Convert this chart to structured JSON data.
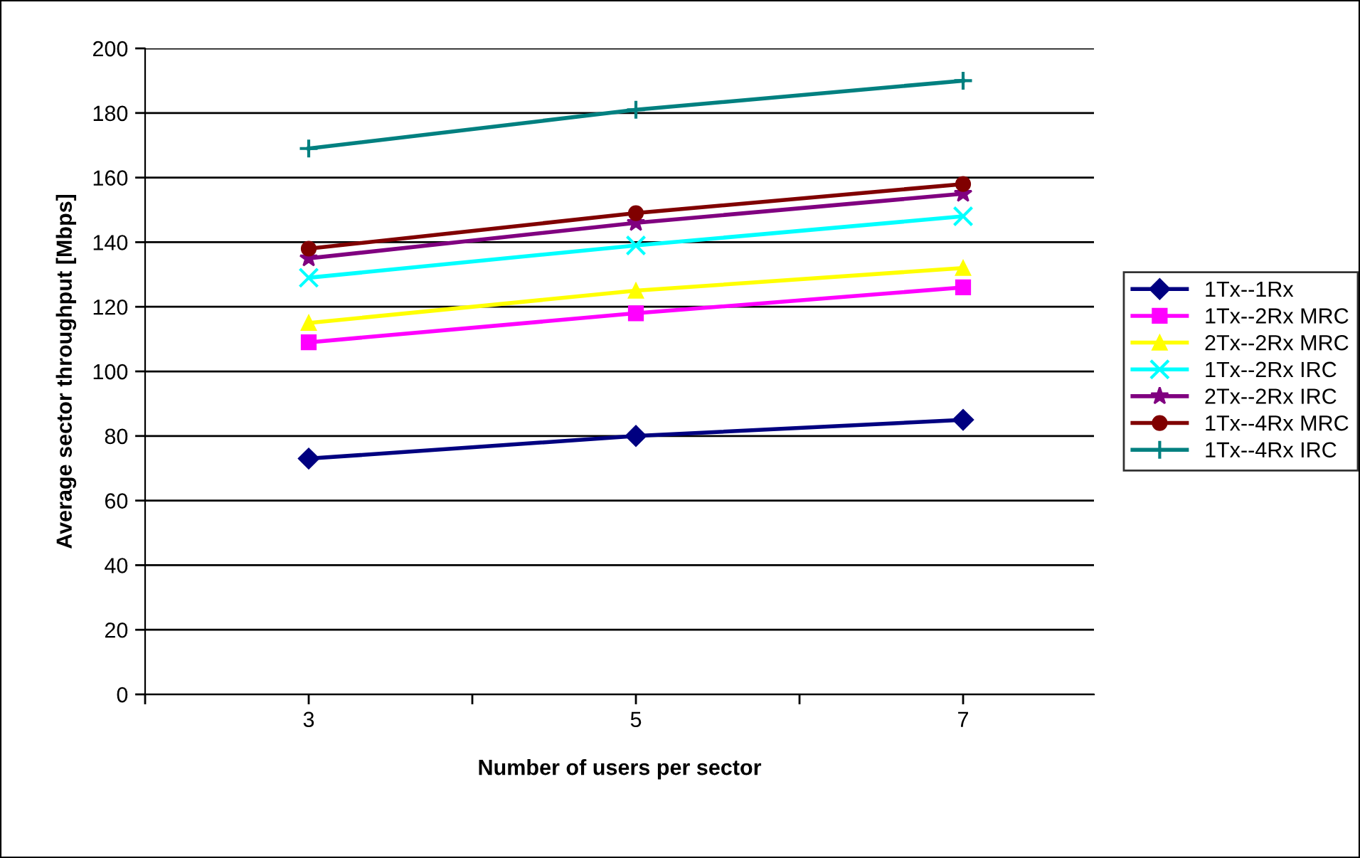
{
  "chart_data": {
    "type": "line",
    "xlabel": "Number of users per sector",
    "ylabel": "Average sector throughput [Mbps]",
    "x": [
      3,
      5,
      7
    ],
    "xlim": [
      2,
      7.8
    ],
    "xticks": [
      {
        "value": 2,
        "label": null
      },
      3,
      {
        "value": 4,
        "label": null
      },
      5,
      {
        "value": 6,
        "label": null
      },
      7
    ],
    "ylim": [
      0,
      200
    ],
    "yticks": [
      0,
      20,
      40,
      60,
      80,
      100,
      120,
      140,
      160,
      180,
      200
    ],
    "grid": "y",
    "legend": "right",
    "line_style": "solid",
    "series": [
      {
        "name": "1Tx--1Rx",
        "color": "#000080",
        "marker": "diamond",
        "values": [
          73,
          80,
          85
        ]
      },
      {
        "name": "1Tx--2Rx MRC",
        "color": "#ff00ff",
        "marker": "square",
        "values": [
          109,
          118,
          126
        ]
      },
      {
        "name": "2Tx--2Rx MRC",
        "color": "#ffff00",
        "marker": "triangle",
        "values": [
          115,
          125,
          132
        ]
      },
      {
        "name": "1Tx--2Rx IRC",
        "color": "#00ffff",
        "marker": "cross",
        "values": [
          129,
          139,
          148
        ]
      },
      {
        "name": "2Tx--2Rx IRC",
        "color": "#800080",
        "marker": "star",
        "values": [
          135,
          146,
          155
        ]
      },
      {
        "name": "1Tx--4Rx MRC",
        "color": "#800000",
        "marker": "circle",
        "values": [
          138,
          149,
          158
        ]
      },
      {
        "name": "1Tx--4Rx IRC",
        "color": "#008080",
        "marker": "plus",
        "values": [
          169,
          181,
          190
        ]
      }
    ]
  }
}
